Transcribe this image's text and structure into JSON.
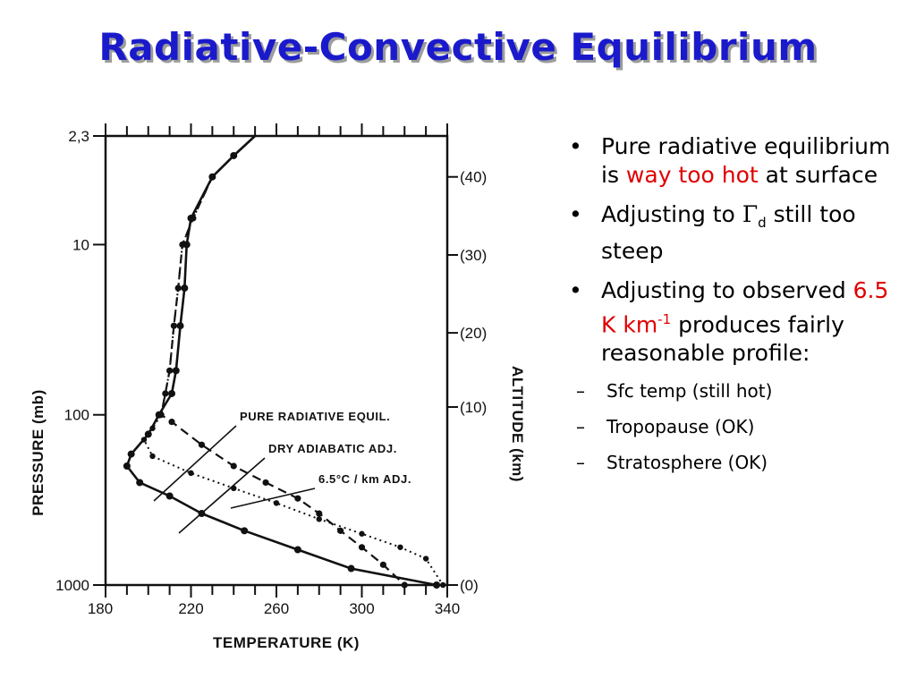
{
  "title": "Radiative-Convective Equilibrium",
  "bullets": {
    "b1": {
      "pre": "Pure radiative equilibrium is ",
      "red": "way too hot",
      "post": " at surface"
    },
    "b2": {
      "pre": "Adjusting to ",
      "gamma": "Γ",
      "sub": "d",
      "post": " still too steep"
    },
    "b3": {
      "pre": "Adjusting to observed ",
      "red": "6.5 K km",
      "red_sup": "-1",
      "post": " produces fairly reasonable profile:"
    },
    "subs": [
      "Sfc temp (still hot)",
      "Tropopause (OK)",
      "Stratosphere (OK)"
    ]
  },
  "chart_data": {
    "type": "line",
    "xlabel": "TEMPERATURE (K)",
    "ylabel": "PRESSURE (mb)",
    "y2label": "ALTITUDE (km)",
    "xlim": [
      180,
      340
    ],
    "x_ticks": [
      180,
      220,
      260,
      300,
      340
    ],
    "y_scale": "log",
    "y_ticks": [
      {
        "value": 2.3,
        "label": "2,3"
      },
      {
        "value": 10,
        "label": "10"
      },
      {
        "value": 100,
        "label": "100"
      },
      {
        "value": 1000,
        "label": "1000"
      }
    ],
    "alt_ticks": [
      {
        "pressure": 4,
        "label": "(40)"
      },
      {
        "pressure": 11.5,
        "label": "(30)"
      },
      {
        "pressure": 33,
        "label": "(20)"
      },
      {
        "pressure": 90,
        "label": "(10)"
      },
      {
        "pressure": 1000,
        "label": "(0)"
      }
    ],
    "series": [
      {
        "name": "PURE RADIATIVE EQUIL.",
        "style": "solid",
        "points": [
          [
            250,
            2.3
          ],
          [
            240,
            3
          ],
          [
            230,
            4
          ],
          [
            220,
            7
          ],
          [
            218,
            10
          ],
          [
            217,
            18
          ],
          [
            215,
            30
          ],
          [
            213,
            55
          ],
          [
            211,
            75
          ],
          [
            205,
            100
          ],
          [
            200,
            130
          ],
          [
            192,
            170
          ],
          [
            190,
            200
          ],
          [
            196,
            250
          ],
          [
            210,
            300
          ],
          [
            225,
            380
          ],
          [
            245,
            480
          ],
          [
            270,
            620
          ],
          [
            295,
            800
          ],
          [
            335,
            1000
          ]
        ]
      },
      {
        "name": "DRY ADIABATIC ADJ.",
        "style": "dotted",
        "points": [
          [
            250,
            2.3
          ],
          [
            240,
            3
          ],
          [
            230,
            4
          ],
          [
            221,
            7
          ],
          [
            216,
            10
          ],
          [
            214,
            18
          ],
          [
            212,
            30
          ],
          [
            210,
            55
          ],
          [
            208,
            75
          ],
          [
            206,
            100
          ],
          [
            202,
            120
          ],
          [
            198,
            140
          ],
          [
            202,
            175
          ],
          [
            220,
            220
          ],
          [
            240,
            270
          ],
          [
            260,
            330
          ],
          [
            280,
            410
          ],
          [
            300,
            500
          ],
          [
            318,
            600
          ],
          [
            330,
            700
          ],
          [
            338,
            1000
          ]
        ]
      },
      {
        "name": "6.5°C / km ADJ.",
        "style": "dashed",
        "points": [
          [
            250,
            2.3
          ],
          [
            240,
            3
          ],
          [
            230,
            4
          ],
          [
            221,
            7
          ],
          [
            216,
            10
          ],
          [
            214,
            18
          ],
          [
            212,
            30
          ],
          [
            210,
            55
          ],
          [
            208,
            75
          ],
          [
            206,
            100
          ],
          [
            211,
            110
          ],
          [
            225,
            150
          ],
          [
            240,
            200
          ],
          [
            255,
            250
          ],
          [
            270,
            310
          ],
          [
            280,
            380
          ],
          [
            290,
            480
          ],
          [
            300,
            600
          ],
          [
            310,
            760
          ],
          [
            320,
            1000
          ]
        ]
      }
    ],
    "labels": [
      {
        "text": "PURE RADIATIVE EQUIL."
      },
      {
        "text": "DRY ADIABATIC ADJ."
      },
      {
        "text": "6.5°C / km ADJ."
      }
    ]
  }
}
